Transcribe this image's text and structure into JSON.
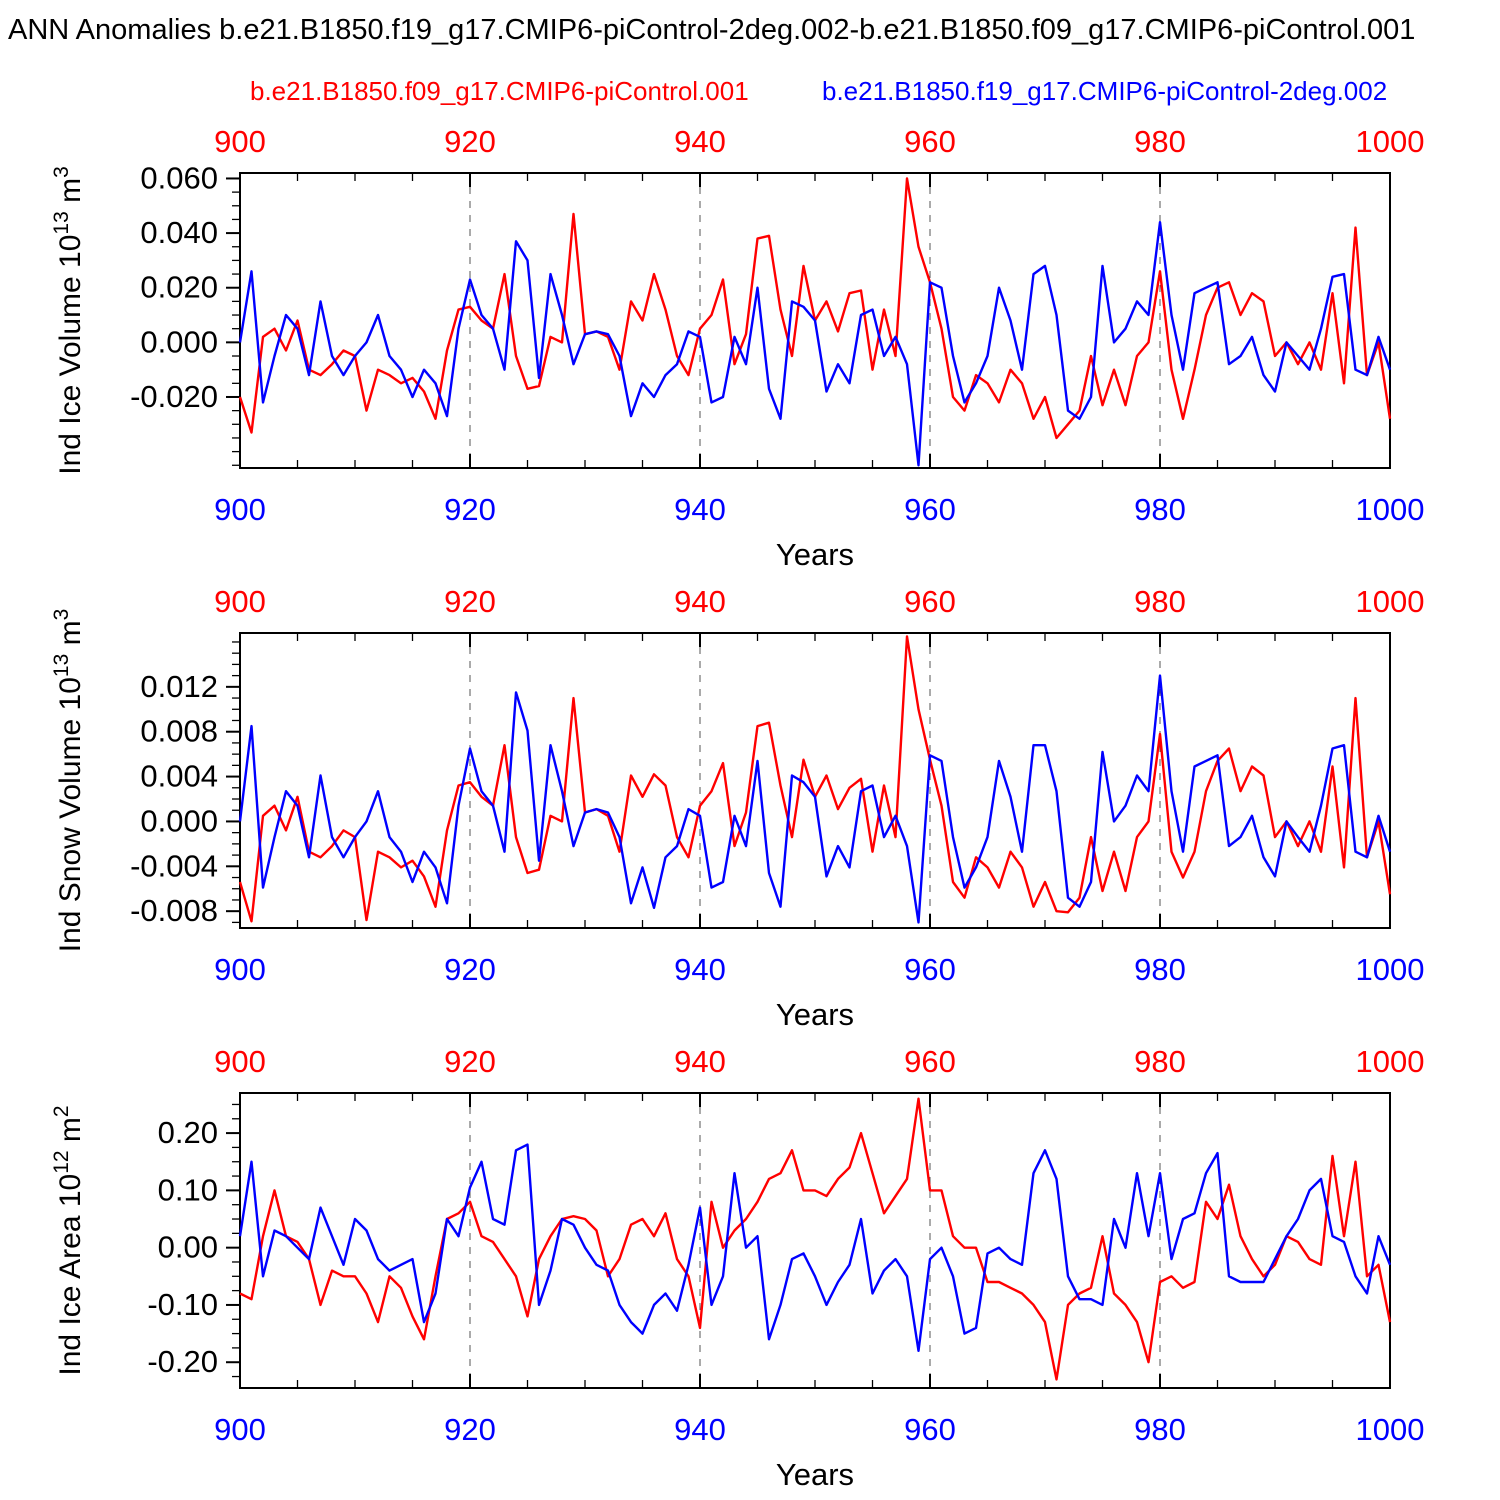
{
  "title": "ANN Anomalies b.e21.B1850.f19_g17.CMIP6-piControl-2deg.002-b.e21.B1850.f09_g17.CMIP6-piControl.001",
  "legend": {
    "red": {
      "label": "b.e21.B1850.f09_g17.CMIP6-piControl.001",
      "color": "#ff0000"
    },
    "blue": {
      "label": "b.e21.B1850.f19_g17.CMIP6-piControl-2deg.002",
      "color": "#0000ff"
    }
  },
  "xaxis": {
    "label": "Years",
    "start": 900,
    "end": 1000,
    "major_ticks": [
      900,
      920,
      940,
      960,
      980,
      1000
    ],
    "minor_step": 5,
    "grid_years": [
      920,
      940,
      960,
      980
    ],
    "top_color": "#ff0000",
    "bottom_color": "#0000ff"
  },
  "chart_data": [
    {
      "type": "line",
      "panel": "ice-volume",
      "ylabel": {
        "text": "Ind Ice Volume 10",
        "exp": "13",
        "unit": " m",
        "unit_exp": "3"
      },
      "ylim": [
        -0.046,
        0.062
      ],
      "yticks": [
        -0.02,
        0.0,
        0.02,
        0.04,
        0.06
      ],
      "ytick_decimals": 3,
      "yminor_step": 0.005,
      "x_years": {
        "start": 900,
        "end": 1000,
        "step": 1
      },
      "series": [
        {
          "name": "b.e21.B1850.f09_g17.CMIP6-piControl.001",
          "color": "#ff0000",
          "values": [
            -0.02,
            -0.033,
            0.002,
            0.005,
            -0.003,
            0.008,
            -0.01,
            -0.012,
            -0.008,
            -0.003,
            -0.005,
            -0.025,
            -0.01,
            -0.012,
            -0.015,
            -0.013,
            -0.018,
            -0.028,
            -0.003,
            0.012,
            0.013,
            0.008,
            0.005,
            0.025,
            -0.005,
            -0.017,
            -0.016,
            0.002,
            0.0,
            0.047,
            0.003,
            0.004,
            0.002,
            -0.01,
            0.015,
            0.008,
            0.025,
            0.012,
            -0.005,
            -0.012,
            0.005,
            0.01,
            0.023,
            -0.008,
            0.003,
            0.038,
            0.039,
            0.012,
            -0.005,
            0.028,
            0.008,
            0.015,
            0.004,
            0.018,
            0.019,
            -0.01,
            0.012,
            -0.005,
            0.06,
            0.035,
            0.022,
            0.005,
            -0.02,
            -0.025,
            -0.012,
            -0.015,
            -0.022,
            -0.01,
            -0.015,
            -0.028,
            -0.02,
            -0.035,
            -0.03,
            -0.025,
            -0.005,
            -0.023,
            -0.01,
            -0.023,
            -0.005,
            0.0,
            0.026,
            -0.01,
            -0.028,
            -0.01,
            0.01,
            0.02,
            0.022,
            0.01,
            0.018,
            0.015,
            -0.005,
            0.0,
            -0.008,
            0.0,
            -0.01,
            0.018,
            -0.015,
            0.042,
            -0.012,
            0.0,
            -0.028
          ]
        },
        {
          "name": "b.e21.B1850.f19_g17.CMIP6-piControl-2deg.002",
          "color": "#0000ff",
          "values": [
            0.0,
            0.026,
            -0.022,
            -0.005,
            0.01,
            0.005,
            -0.012,
            0.015,
            -0.005,
            -0.012,
            -0.005,
            0.0,
            0.01,
            -0.005,
            -0.01,
            -0.02,
            -0.01,
            -0.015,
            -0.027,
            0.005,
            0.023,
            0.01,
            0.005,
            -0.01,
            0.037,
            0.03,
            -0.013,
            0.025,
            0.01,
            -0.008,
            0.003,
            0.004,
            0.003,
            -0.005,
            -0.027,
            -0.015,
            -0.02,
            -0.012,
            -0.008,
            0.004,
            0.002,
            -0.022,
            -0.02,
            0.002,
            -0.008,
            0.02,
            -0.017,
            -0.028,
            0.015,
            0.013,
            0.008,
            -0.018,
            -0.008,
            -0.015,
            0.01,
            0.012,
            -0.005,
            0.002,
            -0.008,
            -0.045,
            0.022,
            0.02,
            -0.005,
            -0.022,
            -0.015,
            -0.005,
            0.02,
            0.008,
            -0.01,
            0.025,
            0.028,
            0.01,
            -0.025,
            -0.028,
            -0.02,
            0.028,
            0.0,
            0.005,
            0.015,
            0.01,
            0.044,
            0.01,
            -0.01,
            0.018,
            0.02,
            0.022,
            -0.008,
            -0.005,
            0.002,
            -0.012,
            -0.018,
            0.0,
            -0.005,
            -0.01,
            0.005,
            0.024,
            0.025,
            -0.01,
            -0.012,
            0.002,
            -0.01
          ]
        }
      ]
    },
    {
      "type": "line",
      "panel": "snow-volume",
      "ylabel": {
        "text": "Ind Snow Volume 10",
        "exp": "13",
        "unit": " m",
        "unit_exp": "3"
      },
      "ylim": [
        -0.0095,
        0.0168
      ],
      "yticks": [
        -0.008,
        -0.004,
        0.0,
        0.004,
        0.008,
        0.012
      ],
      "ytick_decimals": 3,
      "yminor_step": 0.001,
      "x_years": {
        "start": 900,
        "end": 1000,
        "step": 1
      },
      "series": [
        {
          "name": "b.e21.B1850.f09_g17.CMIP6-piControl.001",
          "color": "#ff0000",
          "values": [
            -0.0054,
            -0.0089,
            0.0005,
            0.0014,
            -0.0008,
            0.0022,
            -0.0027,
            -0.0032,
            -0.0022,
            -0.0008,
            -0.0014,
            -0.0088,
            -0.0027,
            -0.0032,
            -0.0041,
            -0.0035,
            -0.0049,
            -0.0076,
            -0.0008,
            0.0032,
            0.0035,
            0.0022,
            0.0014,
            0.0068,
            -0.0014,
            -0.0046,
            -0.0043,
            0.0005,
            0.0,
            0.011,
            0.0008,
            0.0011,
            0.0005,
            -0.0027,
            0.0041,
            0.0022,
            0.0042,
            0.0032,
            -0.0014,
            -0.0032,
            0.0014,
            0.0027,
            0.0052,
            -0.0022,
            0.0008,
            0.0085,
            0.0088,
            0.0032,
            -0.0014,
            0.0055,
            0.0022,
            0.0041,
            0.0011,
            0.003,
            0.0038,
            -0.0027,
            0.0032,
            -0.0014,
            0.0165,
            0.01,
            0.0055,
            0.0014,
            -0.0054,
            -0.0068,
            -0.0032,
            -0.0041,
            -0.0059,
            -0.0027,
            -0.0041,
            -0.0076,
            -0.0054,
            -0.008,
            -0.0081,
            -0.0068,
            -0.0014,
            -0.0062,
            -0.0027,
            -0.0062,
            -0.0014,
            0.0,
            0.0078,
            -0.0027,
            -0.005,
            -0.0027,
            0.0027,
            0.0054,
            0.0065,
            0.0027,
            0.0049,
            0.0041,
            -0.0014,
            0.0,
            -0.0022,
            0.0,
            -0.0027,
            0.0049,
            -0.0041,
            0.011,
            -0.0032,
            0.0,
            -0.0065
          ]
        },
        {
          "name": "b.e21.B1850.f19_g17.CMIP6-piControl-2deg.002",
          "color": "#0000ff",
          "values": [
            0.0,
            0.0085,
            -0.0059,
            -0.0014,
            0.0027,
            0.0014,
            -0.0032,
            0.0041,
            -0.0014,
            -0.0032,
            -0.0014,
            0.0,
            0.0027,
            -0.0014,
            -0.0027,
            -0.0054,
            -0.0027,
            -0.0041,
            -0.0073,
            0.0014,
            0.0065,
            0.0027,
            0.0014,
            -0.0027,
            0.0115,
            0.0081,
            -0.0035,
            0.0068,
            0.0027,
            -0.0022,
            0.0008,
            0.0011,
            0.0008,
            -0.0014,
            -0.0073,
            -0.0041,
            -0.0077,
            -0.0032,
            -0.0022,
            0.0011,
            0.0005,
            -0.0059,
            -0.0054,
            0.0005,
            -0.0022,
            0.0054,
            -0.0046,
            -0.0076,
            0.0041,
            0.0035,
            0.0022,
            -0.0049,
            -0.0022,
            -0.0041,
            0.0027,
            0.0032,
            -0.0014,
            0.0005,
            -0.0022,
            -0.009,
            0.0059,
            0.0054,
            -0.0014,
            -0.0059,
            -0.0041,
            -0.0014,
            0.0054,
            0.0022,
            -0.0027,
            0.0068,
            0.0068,
            0.0027,
            -0.0068,
            -0.0076,
            -0.0054,
            0.0062,
            0.0,
            0.0014,
            0.0041,
            0.0027,
            0.013,
            0.0027,
            -0.0027,
            0.0049,
            0.0054,
            0.0059,
            -0.0022,
            -0.0014,
            0.0005,
            -0.0032,
            -0.0049,
            0.0,
            -0.0014,
            -0.0027,
            0.0014,
            0.0065,
            0.0068,
            -0.0027,
            -0.0032,
            0.0005,
            -0.0027
          ]
        }
      ]
    },
    {
      "type": "line",
      "panel": "ice-area",
      "ylabel": {
        "text": "Ind Ice Area 10",
        "exp": "12",
        "unit": " m",
        "unit_exp": "2"
      },
      "ylim": [
        -0.245,
        0.27
      ],
      "yticks": [
        -0.2,
        -0.1,
        0.0,
        0.1,
        0.2
      ],
      "ytick_decimals": 2,
      "yminor_step": 0.025,
      "x_years": {
        "start": 900,
        "end": 1000,
        "step": 1
      },
      "series": [
        {
          "name": "b.e21.B1850.f09_g17.CMIP6-piControl.001",
          "color": "#ff0000",
          "values": [
            -0.08,
            -0.09,
            0.02,
            0.1,
            0.02,
            0.01,
            -0.02,
            -0.1,
            -0.04,
            -0.05,
            -0.05,
            -0.08,
            -0.13,
            -0.05,
            -0.07,
            -0.12,
            -0.16,
            -0.05,
            0.05,
            0.06,
            0.08,
            0.02,
            0.01,
            -0.02,
            -0.05,
            -0.12,
            -0.02,
            0.02,
            0.05,
            0.055,
            0.05,
            0.03,
            -0.05,
            -0.02,
            0.04,
            0.05,
            0.02,
            0.06,
            -0.02,
            -0.05,
            -0.14,
            0.08,
            0.0,
            0.03,
            0.05,
            0.08,
            0.12,
            0.13,
            0.17,
            0.1,
            0.1,
            0.09,
            0.12,
            0.14,
            0.2,
            0.13,
            0.06,
            0.09,
            0.12,
            0.26,
            0.1,
            0.1,
            0.02,
            0.0,
            0.0,
            -0.06,
            -0.06,
            -0.07,
            -0.08,
            -0.1,
            -0.13,
            -0.23,
            -0.1,
            -0.08,
            -0.07,
            0.02,
            -0.08,
            -0.1,
            -0.13,
            -0.2,
            -0.06,
            -0.05,
            -0.07,
            -0.06,
            0.08,
            0.05,
            0.11,
            0.02,
            -0.02,
            -0.05,
            -0.03,
            0.02,
            0.01,
            -0.02,
            -0.03,
            0.16,
            0.02,
            0.15,
            -0.05,
            -0.03,
            -0.13
          ]
        },
        {
          "name": "b.e21.B1850.f19_g17.CMIP6-piControl-2deg.002",
          "color": "#0000ff",
          "values": [
            0.02,
            0.15,
            -0.05,
            0.03,
            0.02,
            0.0,
            -0.02,
            0.07,
            0.02,
            -0.03,
            0.05,
            0.03,
            -0.02,
            -0.04,
            -0.03,
            -0.02,
            -0.13,
            -0.08,
            0.05,
            0.02,
            0.105,
            0.15,
            0.05,
            0.04,
            0.17,
            0.18,
            -0.1,
            -0.04,
            0.05,
            0.04,
            0.0,
            -0.03,
            -0.04,
            -0.1,
            -0.13,
            -0.15,
            -0.1,
            -0.08,
            -0.11,
            -0.03,
            0.07,
            -0.1,
            -0.05,
            0.13,
            0.0,
            0.02,
            -0.16,
            -0.1,
            -0.02,
            -0.01,
            -0.05,
            -0.1,
            -0.06,
            -0.03,
            0.05,
            -0.08,
            -0.04,
            -0.02,
            -0.05,
            -0.18,
            -0.02,
            0.0,
            -0.05,
            -0.15,
            -0.14,
            -0.01,
            0.0,
            -0.02,
            -0.03,
            0.13,
            0.17,
            0.12,
            -0.05,
            -0.09,
            -0.09,
            -0.1,
            0.05,
            0.0,
            0.13,
            0.02,
            0.13,
            -0.02,
            0.05,
            0.06,
            0.13,
            0.165,
            -0.05,
            -0.06,
            -0.06,
            -0.06,
            -0.02,
            0.02,
            0.05,
            0.1,
            0.12,
            0.02,
            0.01,
            -0.05,
            -0.08,
            0.02,
            -0.03
          ]
        }
      ]
    }
  ]
}
